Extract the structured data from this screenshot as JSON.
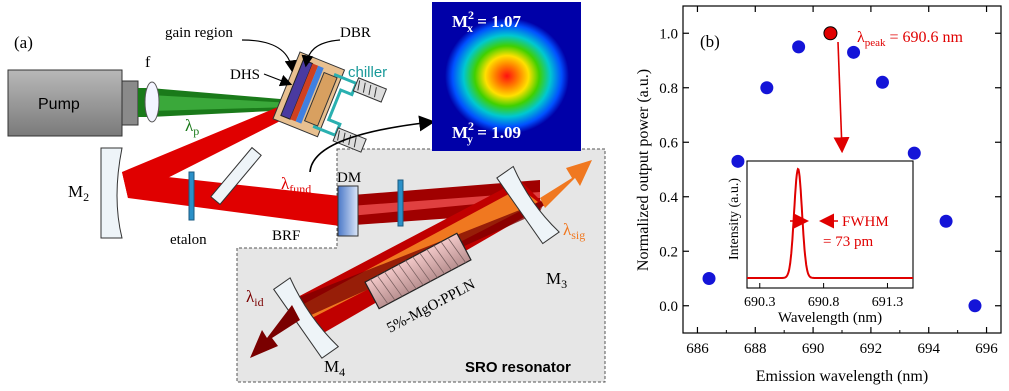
{
  "panel_a": {
    "label": "(a)",
    "pump": "Pump",
    "lens": "f",
    "lambda_p": "λ",
    "lambda_p_sub": "p",
    "gain_region": "gain region",
    "dbr": "DBR",
    "dhs": "DHS",
    "chiller": "chiller",
    "m2": "M",
    "m2_sub": "2",
    "etalon": "etalon",
    "brf": "BRF",
    "lambda_fund": "λ",
    "lambda_fund_sub": "fund",
    "dm": "DM",
    "m3": "M",
    "m3_sub": "3",
    "m4": "M",
    "m4_sub": "4",
    "lambda_sig": "λ",
    "lambda_sig_sub": "sig",
    "lambda_id": "λ",
    "lambda_id_sub": "id",
    "crystal": "5%-MgO:PPLN",
    "resonator": "SRO resonator",
    "mx2": "M",
    "mx2_sub": "x",
    "mx2_val": " = 1.07",
    "my2": "M",
    "my2_sub": "y",
    "my2_val": " = 1.09",
    "sup2": "2",
    "colors": {
      "pump_beam": "#1a7a1a",
      "fund_beam": "#e00000",
      "signal": "#f07820",
      "idler": "#7a0000",
      "resonator_bg": "#e6e6e6"
    }
  },
  "chart_data": {
    "type": "scatter",
    "label": "(b)",
    "x": [
      686.4,
      687.4,
      688.4,
      689.5,
      690.6,
      691.4,
      692.4,
      693.5,
      694.6,
      695.6
    ],
    "y": [
      0.1,
      0.53,
      0.8,
      0.95,
      1.0,
      0.93,
      0.82,
      0.56,
      0.31,
      0.0
    ],
    "highlight_index": 4,
    "xlabel": "Emission wavelength (nm)",
    "ylabel": "Normalized output power (a.u.)",
    "xlim": [
      685.5,
      696.5
    ],
    "ylim": [
      -0.1,
      1.1
    ],
    "xticks": [
      "686",
      "688",
      "690",
      "692",
      "694",
      "696"
    ],
    "yticks": [
      "0.0",
      "0.2",
      "0.4",
      "0.6",
      "0.8",
      "1.0"
    ],
    "annotation": {
      "lambda": "λ",
      "sub": "peak",
      "text": " = 690.6 nm"
    },
    "point_color": "#1414d8",
    "highlight_color": "#e00000",
    "inset": {
      "type": "line",
      "xlabel": "Wavelength (nm)",
      "ylabel": "Intensity (a.u.)",
      "xticks": [
        "690.3",
        "690.8",
        "691.3"
      ],
      "xlim": [
        690.2,
        691.5
      ],
      "peak": 690.6,
      "fwhm_nm": 0.073,
      "fwhm_label": "FWHM",
      "fwhm_value": "= 73 pm"
    }
  }
}
